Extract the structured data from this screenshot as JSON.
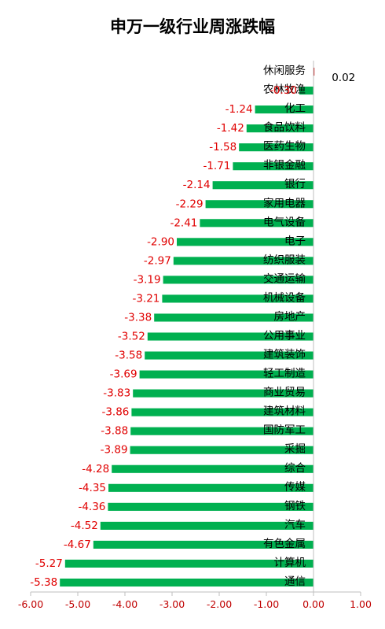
{
  "chart_data": {
    "type": "bar",
    "orientation": "horizontal",
    "title": "申万一级行业周涨跌幅",
    "categories": [
      "休闲服务",
      "农林牧渔",
      "化工",
      "食品饮料",
      "医药生物",
      "非银金融",
      "银行",
      "家用电器",
      "电气设备",
      "电子",
      "纺织服装",
      "交通运输",
      "机械设备",
      "房地产",
      "公用事业",
      "建筑装饰",
      "轻工制造",
      "商业贸易",
      "建筑材料",
      "国防军工",
      "采掘",
      "综合",
      "传媒",
      "钢铁",
      "汽车",
      "有色金属",
      "计算机",
      "通信"
    ],
    "values": [
      0.02,
      -0.3,
      -1.24,
      -1.42,
      -1.58,
      -1.71,
      -2.14,
      -2.29,
      -2.41,
      -2.9,
      -2.97,
      -3.19,
      -3.21,
      -3.38,
      -3.52,
      -3.58,
      -3.69,
      -3.83,
      -3.86,
      -3.88,
      -3.89,
      -4.28,
      -4.35,
      -4.36,
      -4.52,
      -4.67,
      -5.27,
      -5.38
    ],
    "value_labels": [
      "0.02",
      "-0.30",
      "-1.24",
      "-1.42",
      "-1.58",
      "-1.71",
      "-2.14",
      "-2.29",
      "-2.41",
      "-2.90",
      "-2.97",
      "-3.19",
      "-3.21",
      "-3.38",
      "-3.52",
      "-3.58",
      "-3.69",
      "-3.83",
      "-3.86",
      "-3.88",
      "-3.89",
      "-4.28",
      "-4.35",
      "-4.36",
      "-4.52",
      "-4.67",
      "-5.27",
      "-5.38"
    ],
    "xlim": [
      -6.0,
      1.0
    ],
    "xticks": [
      -6,
      -5,
      -4,
      -3,
      -2,
      -1,
      0,
      1
    ],
    "xtick_labels": [
      "-6.00",
      "-5.00",
      "-4.00",
      "-3.00",
      "-2.00",
      "-1.00",
      "0.00",
      "1.00"
    ],
    "grid": false,
    "colors": {
      "negative_bar": "#00b050",
      "positive_bar": "#c00000",
      "negative_label": "#e00000",
      "positive_label": "#000000",
      "axis": "#bfbfbf",
      "tick_label": "#c00000"
    }
  }
}
